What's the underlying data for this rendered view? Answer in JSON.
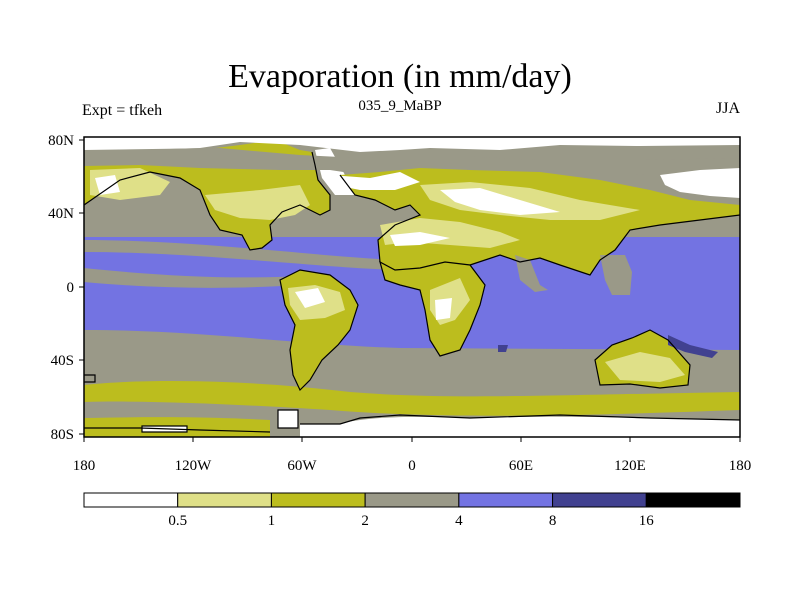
{
  "title": "Evaporation (in mm/day)",
  "subtitle": "035_9_MaBP",
  "left_label": "Expt = tfkeh",
  "right_label": "JJA",
  "y_ticks": [
    "80N",
    "40N",
    "0",
    "40S",
    "80S"
  ],
  "x_ticks": [
    "180",
    "120W",
    "60W",
    "0",
    "60E",
    "120E",
    "180"
  ],
  "colorbar": {
    "colors": [
      "#ffffff",
      "#dfe088",
      "#bcbd1e",
      "#9a9988",
      "#7373e2",
      "#414190",
      "#000000"
    ],
    "labels": [
      "0.5",
      "1",
      "2",
      "4",
      "8",
      "16"
    ]
  }
}
